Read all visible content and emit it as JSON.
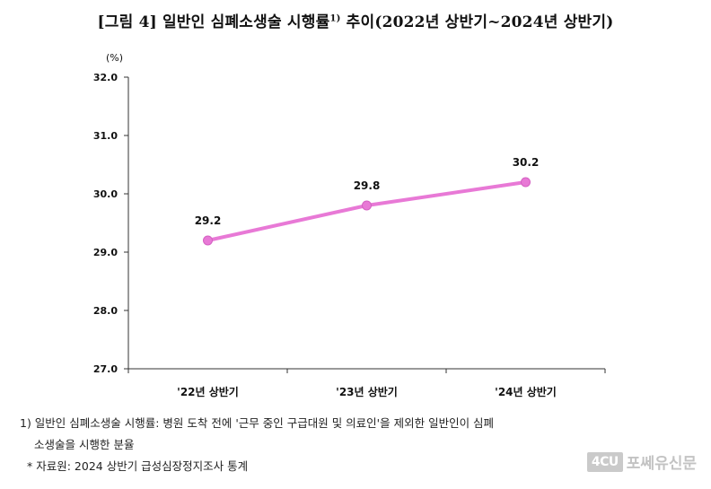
{
  "title": {
    "main": "[그림 4] 일반인 심폐소생술 시행률",
    "sup": "1)",
    "tail": " 추이(2022년 상반기~2024년 상반기)"
  },
  "chart_data": {
    "type": "line",
    "unit_label": "(%)",
    "categories": [
      "'22년 상반기",
      "'23년 상반기",
      "'24년 상반기"
    ],
    "series": [
      {
        "values": [
          29.2,
          29.8,
          30.2
        ],
        "color": "#e879d6"
      }
    ],
    "data_labels": [
      "29.2",
      "29.8",
      "30.2"
    ],
    "ylim": [
      27.0,
      32.0
    ],
    "yticks": [
      "27.0",
      "28.0",
      "29.0",
      "30.0",
      "31.0",
      "32.0"
    ],
    "grid": false
  },
  "notes": {
    "line1": "1) 일반인 심폐소생술 시행률: 병원 도착 전에 '근무 중인 구급대원 및 의료인'을 제외한 일반인이 심폐",
    "line1_cont": "소생술을 시행한 분율",
    "line2": "* 자료원: 2024 상반기 급성심장정지조사 통계"
  },
  "watermark": {
    "box": "4CU",
    "text": "포쎄유신문"
  }
}
